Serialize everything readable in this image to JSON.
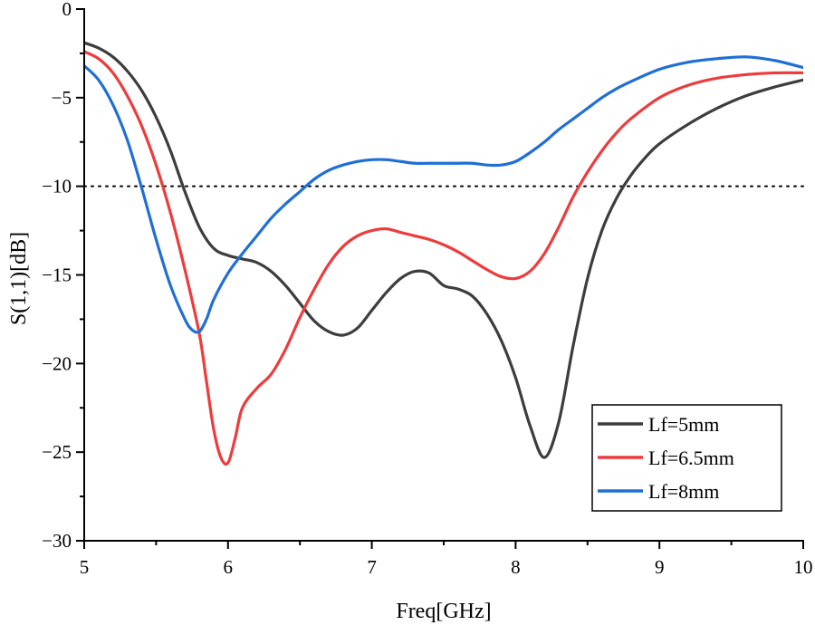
{
  "chart_data": {
    "type": "line",
    "title": "",
    "xlabel": "Freq[GHz]",
    "ylabel": "S(1,1)[dB]",
    "xlim": [
      5,
      10
    ],
    "ylim": [
      -30,
      0
    ],
    "xticks": [
      5,
      6,
      7,
      8,
      9,
      10
    ],
    "yticks": [
      0,
      -5,
      -10,
      -15,
      -20,
      -25,
      -30
    ],
    "ytick_labels": [
      "0",
      "−5",
      "−10",
      "−15",
      "−20",
      "−25",
      "−30"
    ],
    "grid": false,
    "legend_position": "bottom-right",
    "reference_line": {
      "y": -10,
      "style": "dotted"
    },
    "series": [
      {
        "name": "Lf=5mm",
        "color": "#3d3d3d",
        "x": [
          5.0,
          5.1,
          5.2,
          5.3,
          5.4,
          5.5,
          5.6,
          5.7,
          5.8,
          5.9,
          6.0,
          6.1,
          6.2,
          6.3,
          6.4,
          6.5,
          6.6,
          6.7,
          6.8,
          6.9,
          7.0,
          7.1,
          7.2,
          7.3,
          7.4,
          7.5,
          7.6,
          7.7,
          7.8,
          7.9,
          8.0,
          8.1,
          8.2,
          8.3,
          8.4,
          8.5,
          8.6,
          8.7,
          8.8,
          8.9,
          9.0,
          9.2,
          9.4,
          9.6,
          9.8,
          10.0
        ],
        "y": [
          -1.9,
          -2.2,
          -2.7,
          -3.5,
          -4.6,
          -6.1,
          -8.0,
          -10.3,
          -12.3,
          -13.5,
          -13.9,
          -14.1,
          -14.3,
          -14.8,
          -15.6,
          -16.6,
          -17.6,
          -18.2,
          -18.4,
          -18.0,
          -17.0,
          -16.0,
          -15.2,
          -14.8,
          -14.9,
          -15.6,
          -15.8,
          -16.2,
          -17.2,
          -18.7,
          -20.8,
          -23.5,
          -25.3,
          -23.3,
          -19.0,
          -15.2,
          -12.5,
          -10.7,
          -9.4,
          -8.4,
          -7.6,
          -6.5,
          -5.6,
          -4.9,
          -4.4,
          -4.0
        ]
      },
      {
        "name": "Lf=6.5mm",
        "color": "#ee3b3b",
        "x": [
          5.0,
          5.1,
          5.2,
          5.3,
          5.4,
          5.5,
          5.6,
          5.7,
          5.8,
          5.85,
          5.9,
          5.95,
          6.0,
          6.05,
          6.1,
          6.2,
          6.3,
          6.4,
          6.5,
          6.6,
          6.7,
          6.8,
          6.9,
          7.0,
          7.1,
          7.2,
          7.3,
          7.4,
          7.5,
          7.6,
          7.7,
          7.8,
          7.9,
          8.0,
          8.1,
          8.2,
          8.3,
          8.4,
          8.5,
          8.6,
          8.7,
          8.8,
          9.0,
          9.2,
          9.4,
          9.6,
          9.8,
          10.0
        ],
        "y": [
          -2.4,
          -2.8,
          -3.6,
          -4.9,
          -6.6,
          -8.8,
          -11.5,
          -14.7,
          -18.3,
          -21.0,
          -23.7,
          -25.3,
          -25.6,
          -24.2,
          -22.5,
          -21.4,
          -20.6,
          -19.2,
          -17.4,
          -15.8,
          -14.4,
          -13.4,
          -12.8,
          -12.5,
          -12.4,
          -12.6,
          -12.8,
          -13.0,
          -13.3,
          -13.7,
          -14.2,
          -14.7,
          -15.1,
          -15.2,
          -14.8,
          -13.8,
          -12.3,
          -10.6,
          -9.2,
          -8.0,
          -7.0,
          -6.2,
          -5.0,
          -4.3,
          -3.9,
          -3.7,
          -3.6,
          -3.6
        ]
      },
      {
        "name": "Lf=8mm",
        "color": "#1f6fd6",
        "x": [
          5.0,
          5.1,
          5.2,
          5.3,
          5.4,
          5.5,
          5.6,
          5.7,
          5.75,
          5.8,
          5.85,
          5.9,
          6.0,
          6.1,
          6.2,
          6.3,
          6.4,
          6.5,
          6.6,
          6.7,
          6.8,
          6.9,
          7.0,
          7.1,
          7.2,
          7.3,
          7.4,
          7.5,
          7.6,
          7.7,
          7.8,
          7.9,
          8.0,
          8.1,
          8.2,
          8.3,
          8.4,
          8.5,
          8.6,
          8.7,
          8.8,
          9.0,
          9.2,
          9.4,
          9.6,
          9.8,
          10.0
        ],
        "y": [
          -3.2,
          -4.0,
          -5.4,
          -7.4,
          -10.1,
          -13.0,
          -15.6,
          -17.5,
          -18.1,
          -18.2,
          -17.5,
          -16.4,
          -14.9,
          -13.8,
          -12.8,
          -11.8,
          -11.0,
          -10.3,
          -9.6,
          -9.1,
          -8.8,
          -8.6,
          -8.5,
          -8.5,
          -8.6,
          -8.7,
          -8.7,
          -8.7,
          -8.7,
          -8.7,
          -8.8,
          -8.8,
          -8.6,
          -8.1,
          -7.5,
          -6.8,
          -6.2,
          -5.6,
          -5.0,
          -4.5,
          -4.1,
          -3.4,
          -3.0,
          -2.8,
          -2.7,
          -2.9,
          -3.3
        ]
      }
    ]
  }
}
